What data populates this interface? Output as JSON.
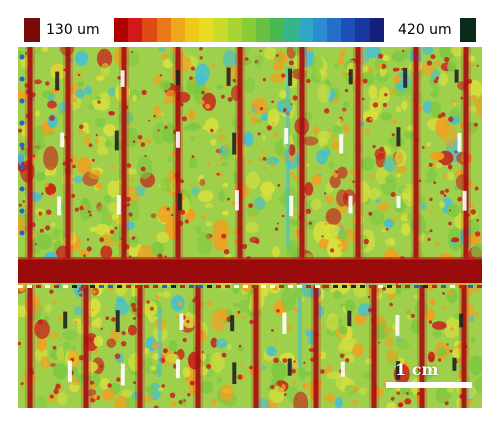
{
  "legend": {
    "min_label": "130 um",
    "max_label": "420 um",
    "min_color": "#7a0a0a",
    "max_color": "#0b2a18",
    "colors": [
      "#b00000",
      "#d21818",
      "#e04a16",
      "#e87818",
      "#eea81c",
      "#f0c81c",
      "#e8dc22",
      "#c8dc2c",
      "#a8d432",
      "#88cc38",
      "#68c040",
      "#48b850",
      "#38b48c",
      "#30a8c4",
      "#2c8cd0",
      "#2470c8",
      "#1c50b8",
      "#1838a0",
      "#14207c"
    ]
  },
  "image": {
    "colors": {
      "base": "#9ed04c",
      "green": "#7ec842",
      "yellow": "#d8e03c",
      "orange": "#f0a020",
      "red": "#c8201a",
      "dark_red": "#9a0c0c",
      "cyan": "#46c0d0",
      "blue": "#2860c8",
      "white": "#ffffff",
      "black": "#222222"
    }
  },
  "scale_bar": {
    "label": "1 cm"
  }
}
